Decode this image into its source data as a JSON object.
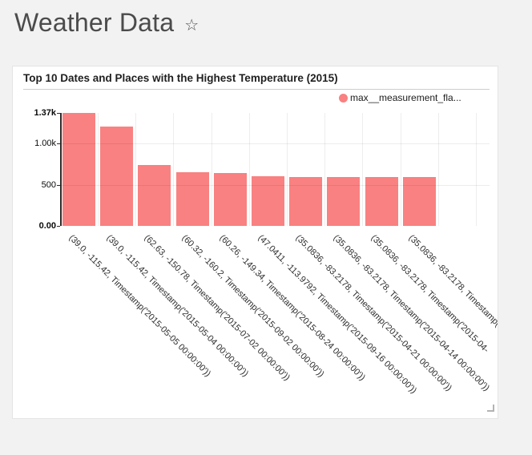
{
  "page": {
    "title": "Weather Data",
    "star_glyph": "☆"
  },
  "card": {
    "title": "Top 10 Dates and Places with the Highest Temperature (2015)",
    "legend": {
      "label": "max__measurement_fla...",
      "color": "#f98181"
    }
  },
  "chart_data": {
    "type": "bar",
    "title": "Top 10 Dates and Places with the Highest Temperature (2015)",
    "series_name": "max__measurement_fla...",
    "categories": [
      "(39.0, -115.42, Timestamp('2015-05-05 00:00:00'))",
      "(39.0, -115.42, Timestamp('2015-05-04 00:00:00'))",
      "(62.63, -150.78, Timestamp('2015-07-02 00:00:00'))",
      "(60.32, -160.2, Timestamp('2015-09-02 00:00:00'))",
      "(60.26, -149.34, Timestamp('2015-08-24 00:00:00'))",
      "(47.0411, -113.9792, Timestamp('2015-09-16 00:00:00'))",
      "(35.0836, -83.2178, Timestamp('2015-04-21 00:00:00'))",
      "(35.0836, -83.2178, Timestamp('2015-04-14 00:00:00'))",
      "(35.0836, -83.2178, Timestamp('2015-04-",
      "(35.0836, -83.2178, Timestamp('"
    ],
    "values": [
      1370,
      1200,
      735,
      648,
      638,
      598,
      588,
      588,
      588,
      588
    ],
    "xlabel": "",
    "ylabel": "",
    "ylim": [
      0,
      1370
    ],
    "y_ticks": [
      {
        "value": 0,
        "label": "0.00",
        "bold": true
      },
      {
        "value": 500,
        "label": "500",
        "bold": false
      },
      {
        "value": 1000,
        "label": "1.00k",
        "bold": false
      },
      {
        "value": 1370,
        "label": "1.37k",
        "bold": true
      }
    ],
    "bar_color": "#f98181",
    "grid": true,
    "legend_position": "top-right",
    "x_label_rotation": 45
  }
}
